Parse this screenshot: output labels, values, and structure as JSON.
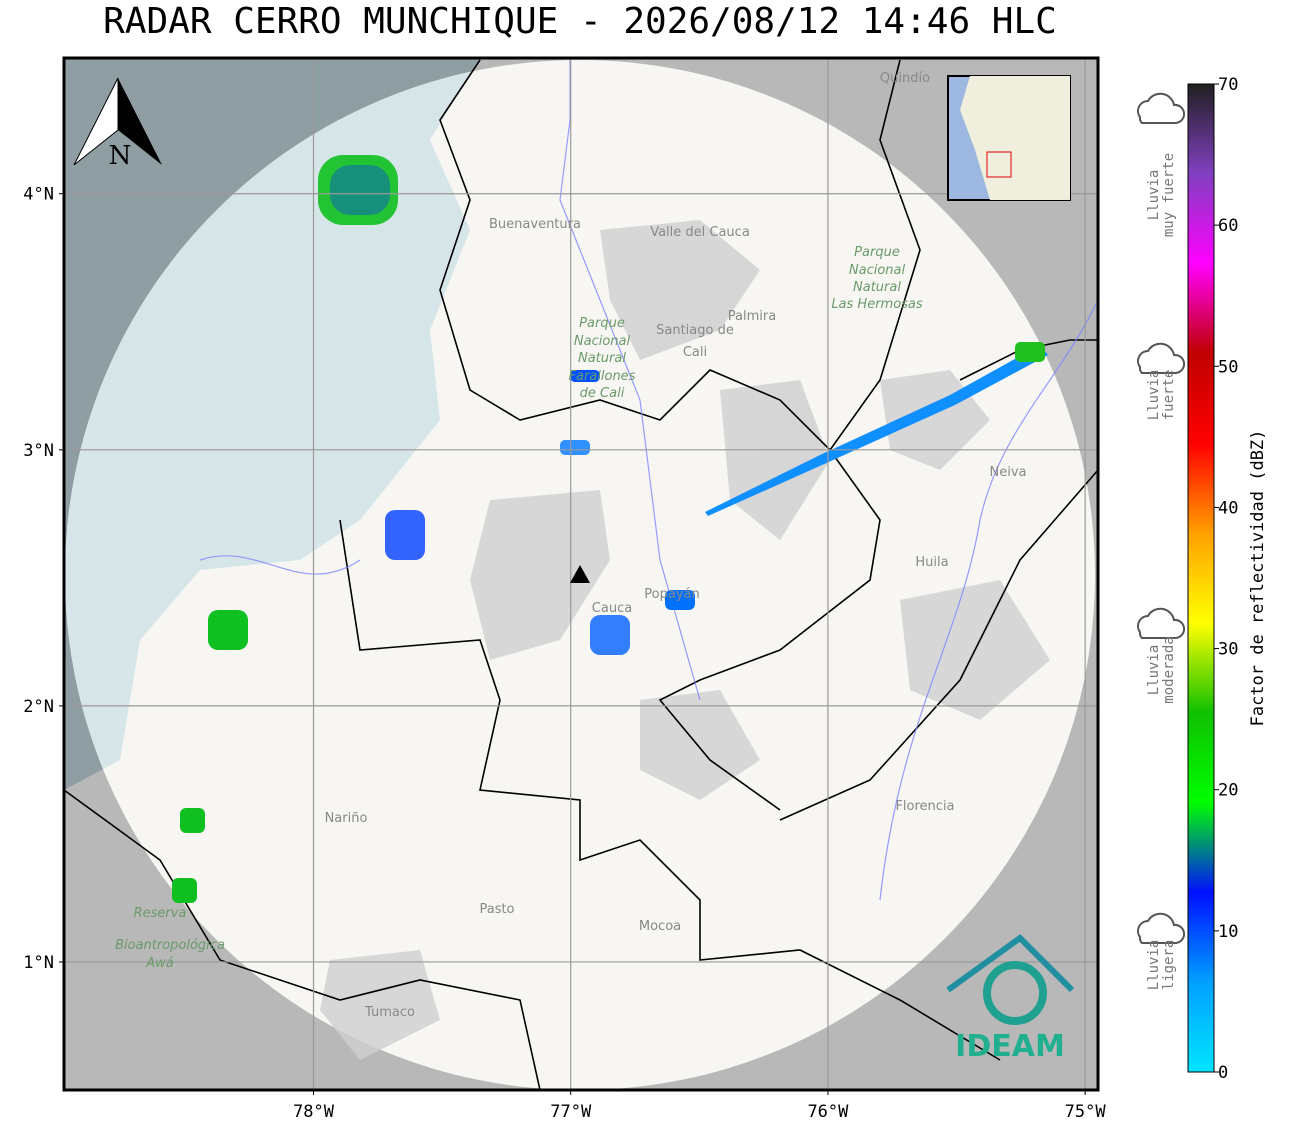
{
  "header": {
    "title": "RADAR CERRO MUNCHIQUE - 2026/08/12 14:46 HLC"
  },
  "map": {
    "xlim": [
      -78.97,
      -74.95
    ],
    "ylim": [
      0.5,
      4.53
    ],
    "xticks": [
      {
        "value": -78,
        "label": "78°W"
      },
      {
        "value": -77,
        "label": "77°W"
      },
      {
        "value": -76,
        "label": "76°W"
      },
      {
        "value": -75,
        "label": "75°W"
      }
    ],
    "yticks": [
      {
        "value": 1,
        "label": "1°N"
      },
      {
        "value": 2,
        "label": "2°N"
      },
      {
        "value": 3,
        "label": "3°N"
      },
      {
        "value": 4,
        "label": "4°N"
      }
    ],
    "grid": true,
    "north_label": "N",
    "places": [
      "Quindío",
      "Buenaventura",
      "Valle del Cauca",
      "Palmira",
      "Santiago de",
      "Cali",
      "Parque",
      "Nacional",
      "Natural",
      "Farallones",
      "de Cali",
      "Parque",
      "Nacional",
      "Natural",
      "Las Hermosas",
      "Neiva",
      "Huila",
      "Popayán",
      "Cauca",
      "Nariño",
      "Pasto",
      "Mocoa",
      "Florencia",
      "Reserva",
      "Bioantropológica",
      "Awá",
      "Tumaco"
    ],
    "logo": "IDEAM"
  },
  "colorbar": {
    "label": "Factor de reflectividad (dBZ)",
    "lim": [
      0,
      70
    ],
    "ticks": [
      0,
      10,
      20,
      30,
      40,
      50,
      60,
      70
    ],
    "colors": [
      "#00e5ff",
      "#00a0ff",
      "#0010ff",
      "#00ff00",
      "#10c000",
      "#ffff00",
      "#ffa000",
      "#ff0000",
      "#c00000",
      "#ff00ff",
      "#8040c0",
      "#202020"
    ]
  },
  "legend": [
    {
      "lines": [
        "Lluvia",
        "muy fuerte"
      ]
    },
    {
      "lines": [
        "Lluvia",
        "fuerte"
      ]
    },
    {
      "lines": [
        "Lluvia",
        "moderada"
      ]
    },
    {
      "lines": [
        "Lluvia",
        "ligera"
      ]
    }
  ]
}
